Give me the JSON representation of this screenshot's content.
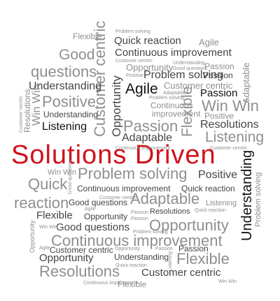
{
  "words": {
    "headline": "Solutions Driven",
    "w_flexible_top": "Flexible",
    "w_problem_top": "Problem solving",
    "w_quick_reaction_top": "Quick reaction",
    "w_agile_top": "Agile",
    "w_good_top": "Good",
    "w_continuous_top": "Continuous improvement",
    "w_customer_centric_top": "Customer centric",
    "w_understanding_sm_top": "Understanding",
    "w_good_questions_sm_top": "Good questions",
    "w_questions_big": "questions",
    "w_opportunity_top": "Opportunity",
    "w_passion_sm_top": "Passion",
    "w_positive_sm_top": "Positive",
    "w_problem_big_top": "Problem solving",
    "w_understanding_top": "Understanding",
    "w_customer_centric_mid": "Customer centric",
    "w_agile_black": "Agile",
    "w_adaptable_sm": "Adaptable",
    "w_passion_black": "Passion",
    "w_positive_big": "Positive",
    "w_win_win_big": "Win Win",
    "w_problem_sm_mid": "Problem solving",
    "w_continuous_sm_mid": "Continuous",
    "w_improvement_sm_mid": "improvement",
    "w_positive_sm_mid": "Positive",
    "w_resolutions_sm_mid": "Resolutions",
    "w_understanding_mid": "Understanding",
    "w_listening_black": "Listening",
    "w_passion_big": "Passion",
    "w_adaptable_mid": "Adaptable",
    "w_listening_big": "Listening",
    "w_opportunity_vertical": "Opportunity",
    "w_flexible_vertical": "Flexible",
    "w_customer_centric_vertical": "Customer centric",
    "w_adaptable_vertical": "Adaptable",
    "w_resolutions_vertical": "Resolutions",
    "w_win_win_vertical": "Win Win",
    "w_customer_centric_tiny_v": "Customer centric",
    "w_customer_centric_tiny": "Customer centric",
    "w_continuous_tiny": "Continuous improvement",
    "w_win_win_mid": "Win Win",
    "w_problem_big_mid": "Problem solving",
    "w_positive_dark": "Positive",
    "w_quick_big": "Quick",
    "w_good_questions_tiny": "Good questions",
    "w_continuous_mid2": "Continuous improvement",
    "w_quick_reaction_mid": "Quick reaction",
    "w_understanding_vertical": "Understanding",
    "w_problem_solving_vertical": "Problem solving",
    "w_reaction_big": "reaction",
    "w_flexible_mid": "Flexible",
    "w_agile_tiny": "Agile",
    "w_customer_centric_tiny2": "Customer centric",
    "w_adaptable_big": "Adaptable",
    "w_listening_sm": "Listening",
    "w_resolutions_sm2": "Resolutions",
    "w_quick_reaction_tiny": "Quick reaction",
    "w_passion_sm2": "Passion",
    "w_problem_tiny2": "Problem solving",
    "w_good_questions_dark": "Good questions",
    "w_opportunity_big": "Opportunity",
    "w_win_win_tiny": "Win Win",
    "w_continuous_big": "Continuous improvement",
    "w_opportunity_vertical2": "Opportunity",
    "w_agile_tiny2": "Agile",
    "w_customer_centric_low": "Customer centric",
    "w_opportunity_tiny": "Opportunity",
    "w_passion_low": "Passion",
    "w_passion_tiny": "Passion",
    "w_opportunity_low": "Opportunity",
    "w_understanding_low": "Understanding",
    "w_listening_vertical_low": "Listening",
    "w_flexible_big_low": "Flexible",
    "w_quick_reaction_tiny2": "Quick reaction",
    "w_resolutions_big_low": "Resolutions",
    "w_customer_centric_dark_low": "Customer centric",
    "w_continuous_tiny_low": "Continuous improvement",
    "w_flexible_low": "Flexible",
    "w_win_win_tiny_low": "Win Win",
    "w_understanding_vertical_right": "Understanding"
  },
  "colors": {
    "headline": "#d0121b",
    "dark": "#444444",
    "black": "#111111",
    "grey": "#8f8f8f"
  }
}
